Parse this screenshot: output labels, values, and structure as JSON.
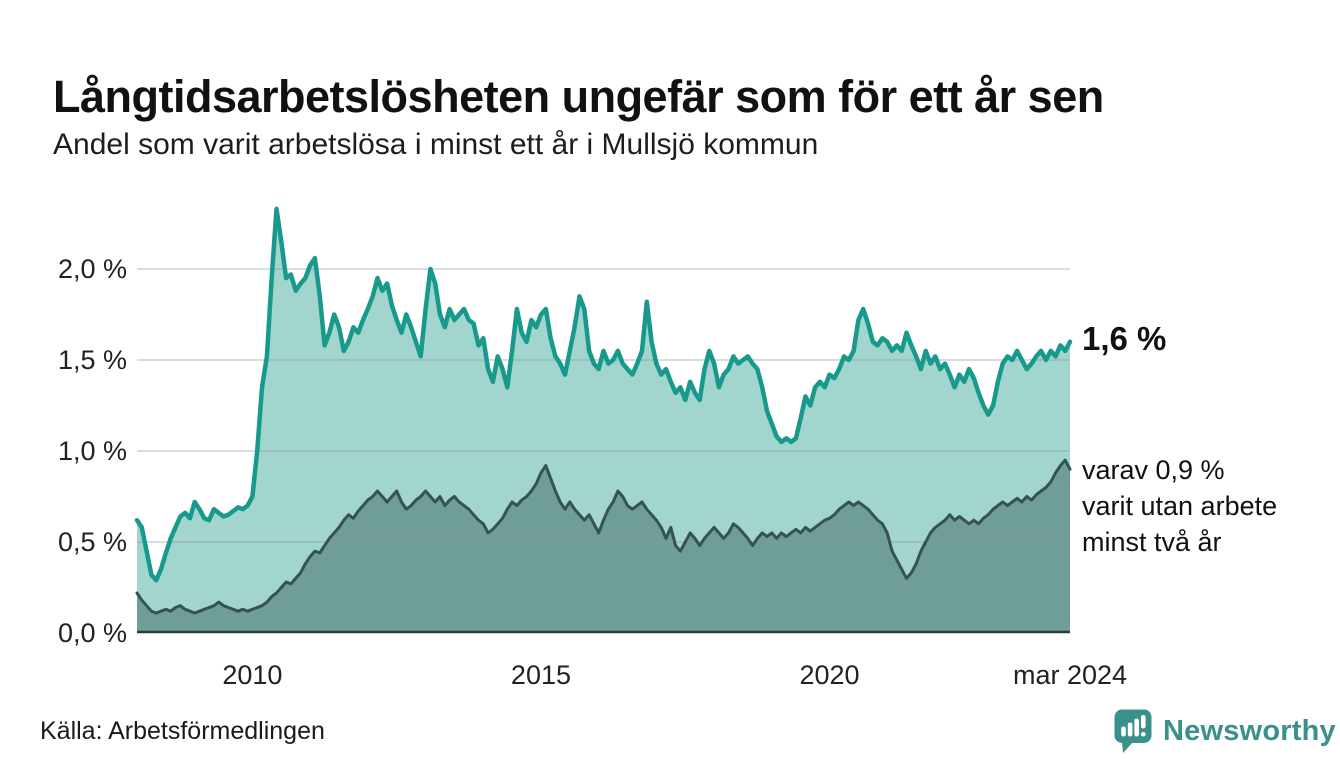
{
  "title": "Långtidsarbetslösheten ungefär som för ett år sen",
  "subtitle": "Andel som varit arbetslösa i minst ett år i Mullsjö kommun",
  "source": "Källa: Arbetsförmedlingen",
  "logo": {
    "wordmark": "Newsworthy"
  },
  "annotations": {
    "latest_total": "1,6 %",
    "two_year_lines": [
      "varav 0,9 %",
      "varit utan arbete",
      "minst två år"
    ]
  },
  "colors": {
    "series1_line": "#17998c",
    "series1_fill": "#a3d5cf",
    "series2_line": "#35534f",
    "series2_fill": "#6f9e99",
    "baseline": "#2f3b3a",
    "gridline": "rgba(130,150,160,0.32)",
    "logo_teal": "#3a918b"
  },
  "chart_data": {
    "type": "area",
    "title": "Långtidsarbetslösheten ungefär som för ett år sen",
    "subtitle": "Andel som varit arbetslösa i minst ett år i Mullsjö kommun",
    "x_start": "2008-01",
    "x_end": "2024-03",
    "interval": "monthly",
    "unit": "%",
    "ylim": [
      0,
      2.4
    ],
    "grid": true,
    "legend": "annotations",
    "y_ticks": [
      {
        "v": 0.0,
        "label": "0,0 %"
      },
      {
        "v": 0.5,
        "label": "0,5 %"
      },
      {
        "v": 1.0,
        "label": "1,0 %"
      },
      {
        "v": 1.5,
        "label": "1,5 %"
      },
      {
        "v": 2.0,
        "label": "2,0 %"
      }
    ],
    "x_ticks": [
      {
        "idx": 24,
        "label": "2010"
      },
      {
        "idx": 84,
        "label": "2015"
      },
      {
        "idx": 144,
        "label": "2020"
      },
      {
        "idx": 194,
        "label": "mar 2024"
      }
    ],
    "series": [
      {
        "name": "Arbetslösa minst ett år",
        "latest_label": "1,6 %",
        "latest_value": 1.6,
        "values": [
          0.62,
          0.58,
          0.45,
          0.32,
          0.29,
          0.35,
          0.44,
          0.52,
          0.58,
          0.64,
          0.66,
          0.63,
          0.72,
          0.68,
          0.63,
          0.62,
          0.68,
          0.66,
          0.64,
          0.65,
          0.67,
          0.69,
          0.68,
          0.7,
          0.75,
          1.0,
          1.35,
          1.52,
          1.95,
          2.33,
          2.15,
          1.95,
          1.97,
          1.88,
          1.92,
          1.95,
          2.02,
          2.06,
          1.85,
          1.58,
          1.65,
          1.75,
          1.68,
          1.55,
          1.6,
          1.68,
          1.65,
          1.72,
          1.78,
          1.85,
          1.95,
          1.88,
          1.92,
          1.8,
          1.72,
          1.65,
          1.75,
          1.68,
          1.6,
          1.52,
          1.78,
          2.0,
          1.92,
          1.75,
          1.68,
          1.78,
          1.72,
          1.75,
          1.78,
          1.72,
          1.7,
          1.58,
          1.62,
          1.45,
          1.38,
          1.52,
          1.45,
          1.35,
          1.55,
          1.78,
          1.65,
          1.6,
          1.72,
          1.68,
          1.75,
          1.78,
          1.62,
          1.52,
          1.48,
          1.42,
          1.55,
          1.68,
          1.85,
          1.78,
          1.55,
          1.48,
          1.45,
          1.55,
          1.48,
          1.5,
          1.55,
          1.48,
          1.45,
          1.42,
          1.48,
          1.55,
          1.82,
          1.6,
          1.48,
          1.42,
          1.45,
          1.38,
          1.32,
          1.35,
          1.28,
          1.38,
          1.32,
          1.28,
          1.45,
          1.55,
          1.48,
          1.35,
          1.42,
          1.45,
          1.52,
          1.48,
          1.5,
          1.52,
          1.48,
          1.45,
          1.35,
          1.22,
          1.15,
          1.08,
          1.05,
          1.07,
          1.05,
          1.07,
          1.18,
          1.3,
          1.25,
          1.35,
          1.38,
          1.35,
          1.42,
          1.4,
          1.45,
          1.52,
          1.5,
          1.55,
          1.72,
          1.78,
          1.7,
          1.6,
          1.58,
          1.62,
          1.6,
          1.55,
          1.58,
          1.55,
          1.65,
          1.58,
          1.52,
          1.45,
          1.55,
          1.48,
          1.52,
          1.45,
          1.48,
          1.42,
          1.35,
          1.42,
          1.38,
          1.45,
          1.4,
          1.32,
          1.25,
          1.2,
          1.25,
          1.38,
          1.48,
          1.52,
          1.5,
          1.55,
          1.5,
          1.45,
          1.48,
          1.52,
          1.55,
          1.5,
          1.55,
          1.52,
          1.58,
          1.55,
          1.6
        ]
      },
      {
        "name": "Arbetslösa minst två år",
        "latest_label": "varav 0,9 % varit utan arbete minst två år",
        "latest_value": 0.9,
        "values": [
          0.22,
          0.18,
          0.15,
          0.12,
          0.11,
          0.12,
          0.13,
          0.12,
          0.14,
          0.15,
          0.13,
          0.12,
          0.11,
          0.12,
          0.13,
          0.14,
          0.15,
          0.17,
          0.15,
          0.14,
          0.13,
          0.12,
          0.13,
          0.12,
          0.13,
          0.14,
          0.15,
          0.17,
          0.2,
          0.22,
          0.25,
          0.28,
          0.27,
          0.3,
          0.33,
          0.38,
          0.42,
          0.45,
          0.44,
          0.48,
          0.52,
          0.55,
          0.58,
          0.62,
          0.65,
          0.63,
          0.67,
          0.7,
          0.73,
          0.75,
          0.78,
          0.75,
          0.72,
          0.75,
          0.78,
          0.72,
          0.68,
          0.7,
          0.73,
          0.75,
          0.78,
          0.75,
          0.72,
          0.75,
          0.7,
          0.73,
          0.75,
          0.72,
          0.7,
          0.68,
          0.65,
          0.62,
          0.6,
          0.55,
          0.57,
          0.6,
          0.63,
          0.68,
          0.72,
          0.7,
          0.73,
          0.75,
          0.78,
          0.82,
          0.88,
          0.92,
          0.85,
          0.78,
          0.72,
          0.68,
          0.72,
          0.68,
          0.65,
          0.62,
          0.65,
          0.6,
          0.55,
          0.62,
          0.68,
          0.72,
          0.78,
          0.75,
          0.7,
          0.68,
          0.7,
          0.72,
          0.68,
          0.65,
          0.62,
          0.58,
          0.52,
          0.58,
          0.48,
          0.45,
          0.5,
          0.55,
          0.52,
          0.48,
          0.52,
          0.55,
          0.58,
          0.55,
          0.52,
          0.55,
          0.6,
          0.58,
          0.55,
          0.52,
          0.48,
          0.52,
          0.55,
          0.53,
          0.55,
          0.52,
          0.55,
          0.53,
          0.55,
          0.57,
          0.55,
          0.58,
          0.56,
          0.58,
          0.6,
          0.62,
          0.63,
          0.65,
          0.68,
          0.7,
          0.72,
          0.7,
          0.72,
          0.7,
          0.68,
          0.65,
          0.62,
          0.6,
          0.55,
          0.45,
          0.4,
          0.35,
          0.3,
          0.33,
          0.38,
          0.45,
          0.5,
          0.55,
          0.58,
          0.6,
          0.62,
          0.65,
          0.62,
          0.64,
          0.62,
          0.6,
          0.62,
          0.6,
          0.63,
          0.65,
          0.68,
          0.7,
          0.72,
          0.7,
          0.72,
          0.74,
          0.72,
          0.75,
          0.73,
          0.76,
          0.78,
          0.8,
          0.83,
          0.88,
          0.92,
          0.95,
          0.9
        ]
      }
    ]
  }
}
